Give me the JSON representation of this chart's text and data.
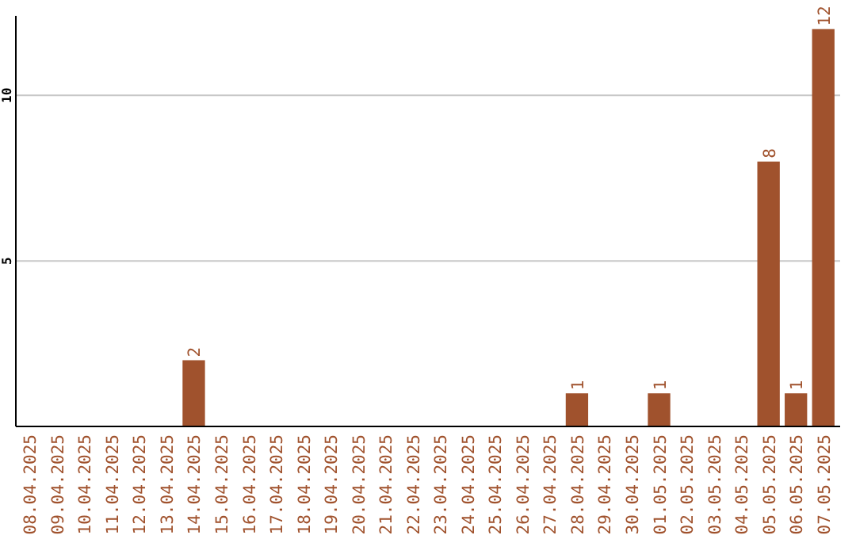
{
  "chart_data": {
    "type": "bar",
    "categories": [
      "08.04.2025",
      "09.04.2025",
      "10.04.2025",
      "11.04.2025",
      "12.04.2025",
      "13.04.2025",
      "14.04.2025",
      "15.04.2025",
      "16.04.2025",
      "17.04.2025",
      "18.04.2025",
      "19.04.2025",
      "20.04.2025",
      "21.04.2025",
      "22.04.2025",
      "23.04.2025",
      "24.04.2025",
      "25.04.2025",
      "26.04.2025",
      "27.04.2025",
      "28.04.2025",
      "29.04.2025",
      "30.04.2025",
      "01.05.2025",
      "02.05.2025",
      "03.05.2025",
      "04.05.2025",
      "05.05.2025",
      "06.05.2025",
      "07.05.2025"
    ],
    "values": [
      0,
      0,
      0,
      0,
      0,
      0,
      2,
      0,
      0,
      0,
      0,
      0,
      0,
      0,
      0,
      0,
      0,
      0,
      0,
      0,
      1,
      0,
      0,
      1,
      0,
      0,
      0,
      8,
      1,
      12
    ],
    "value_labels": [
      null,
      null,
      null,
      null,
      null,
      null,
      "2",
      null,
      null,
      null,
      null,
      null,
      null,
      null,
      null,
      null,
      null,
      null,
      null,
      null,
      "1",
      null,
      null,
      "1",
      null,
      null,
      null,
      "8",
      "1",
      "12"
    ],
    "color": "#a0522d",
    "ylim": [
      0,
      12.4
    ],
    "yticks": [
      5,
      10
    ],
    "grid": "y"
  }
}
